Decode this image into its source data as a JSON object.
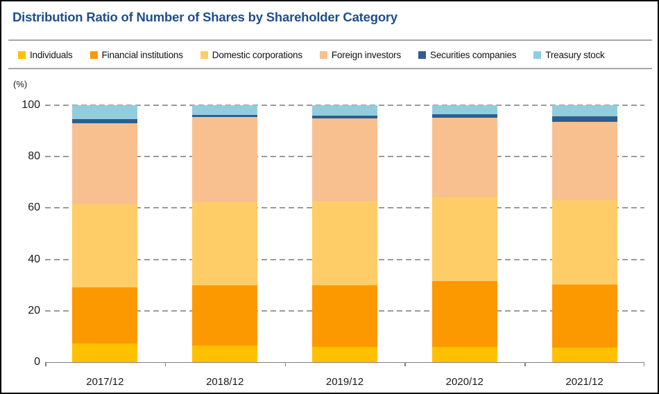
{
  "header": {
    "title": "Distribution Ratio of Number of Shares by Shareholder Category"
  },
  "axis": {
    "unit_label": "(%)"
  },
  "colors": {
    "title": "#1F4E8C",
    "divider": "#A6A6A6",
    "gridline": "#9a9a9a",
    "axis_line": "#7f7f7f",
    "border": "#000000"
  },
  "chart_data": {
    "type": "bar",
    "stacked": true,
    "title": "Distribution Ratio of Number of Shares by Shareholder Category",
    "xlabel": "",
    "ylabel": "(%)",
    "ylim": [
      0,
      100
    ],
    "yticks": [
      0,
      20,
      40,
      60,
      80,
      100
    ],
    "grid": "horizontal-dashed",
    "legend_position": "top",
    "categories": [
      "2017/12",
      "2018/12",
      "2019/12",
      "2020/12",
      "2021/12"
    ],
    "series": [
      {
        "name": "Individuals",
        "color": "#FFC000",
        "values": [
          7.4,
          6.5,
          5.9,
          5.9,
          5.7
        ]
      },
      {
        "name": "Financial institutions",
        "color": "#FD9900",
        "values": [
          21.6,
          23.4,
          24.0,
          25.6,
          24.6
        ]
      },
      {
        "name": "Domestic corporations",
        "color": "#FFCD67",
        "values": [
          32.5,
          32.3,
          32.7,
          32.7,
          32.7
        ]
      },
      {
        "name": "Foreign investors",
        "color": "#F9C08F",
        "values": [
          31.5,
          33.1,
          32.3,
          31.0,
          30.5
        ]
      },
      {
        "name": "Securities companies",
        "color": "#2E5E8C",
        "values": [
          1.6,
          0.9,
          1.0,
          1.4,
          2.2
        ]
      },
      {
        "name": "Treasury stock",
        "color": "#92CDDE",
        "values": [
          5.4,
          3.8,
          4.1,
          3.4,
          4.3
        ]
      }
    ]
  }
}
